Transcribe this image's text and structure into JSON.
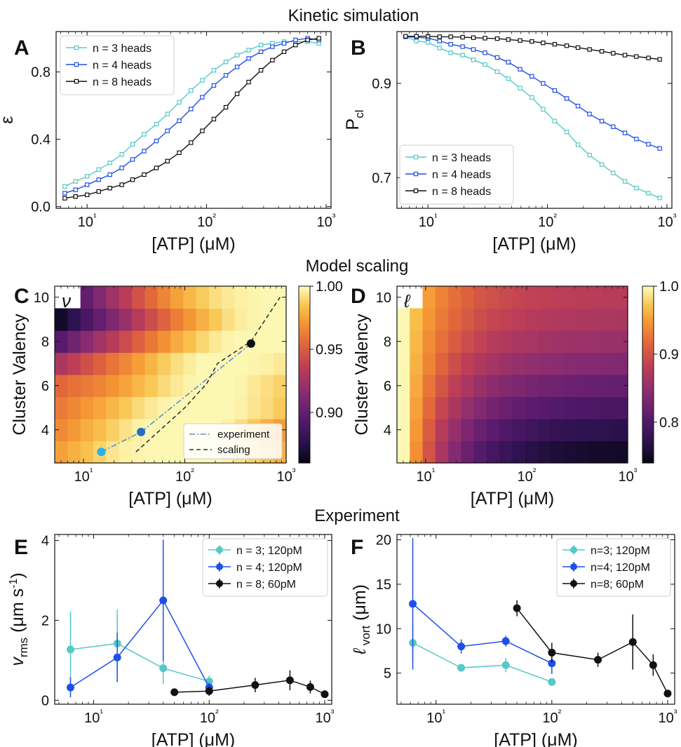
{
  "sections": {
    "kinetic": "Kinetic simulation",
    "model": "Model scaling",
    "experiment": "Experiment"
  },
  "panel_letters": {
    "A": "A",
    "B": "B",
    "C": "C",
    "D": "D",
    "E": "E",
    "F": "F"
  },
  "colors": {
    "n3": "#56c8c8",
    "n4": "#1f4fe8",
    "n8": "#111111",
    "scaling": "#333333",
    "exp_line": "#5a8fd0",
    "exp_pt1": "#2ab0e8",
    "exp_pt2": "#1f6fc0"
  },
  "chart_data": [
    {
      "id": "A",
      "type": "line",
      "title": "",
      "xlabel": "[ATP] (μM)",
      "ylabel": "ε",
      "xscale": "log",
      "xlim": [
        5.5,
        1100
      ],
      "ylim": [
        -0.01,
        1.04
      ],
      "xticks": [
        10,
        100,
        1000
      ],
      "xtick_labels": [
        "10¹",
        "10²",
        "10³"
      ],
      "yticks": [
        0.0,
        0.4,
        0.8
      ],
      "ytick_labels": [
        "0.0",
        "0.4",
        "0.8"
      ],
      "legend": "top-left",
      "marker": "open-square",
      "x": [
        6.5,
        8,
        10,
        12.5,
        15.5,
        19.5,
        24,
        30,
        38,
        47,
        59,
        74,
        92,
        115,
        145,
        180,
        225,
        285,
        355,
        445,
        555,
        700,
        870
      ],
      "series": [
        {
          "name": "n = 3 heads",
          "color": "#56c8c8",
          "values": [
            0.12,
            0.15,
            0.18,
            0.22,
            0.26,
            0.31,
            0.37,
            0.43,
            0.49,
            0.55,
            0.62,
            0.69,
            0.75,
            0.81,
            0.86,
            0.9,
            0.93,
            0.96,
            0.97,
            0.98,
            0.98,
            0.98,
            0.97
          ]
        },
        {
          "name": "n = 4 heads",
          "color": "#1f4fe8",
          "values": [
            0.08,
            0.1,
            0.13,
            0.16,
            0.19,
            0.23,
            0.28,
            0.33,
            0.39,
            0.45,
            0.51,
            0.58,
            0.65,
            0.72,
            0.78,
            0.83,
            0.88,
            0.92,
            0.95,
            0.97,
            0.99,
            1.0,
            0.99
          ]
        },
        {
          "name": "n = 8 heads",
          "color": "#111111",
          "values": [
            0.05,
            0.06,
            0.07,
            0.09,
            0.11,
            0.13,
            0.16,
            0.19,
            0.23,
            0.27,
            0.32,
            0.38,
            0.45,
            0.52,
            0.59,
            0.67,
            0.74,
            0.81,
            0.87,
            0.92,
            0.96,
            0.99,
            1.0
          ]
        }
      ]
    },
    {
      "id": "B",
      "type": "line",
      "title": "",
      "xlabel": "[ATP] (μM)",
      "ylabel": "P",
      "ylabel_sub": "cl",
      "xscale": "log",
      "xlim": [
        5.5,
        1100
      ],
      "ylim": [
        0.635,
        1.01
      ],
      "xticks": [
        10,
        100,
        1000
      ],
      "xtick_labels": [
        "10¹",
        "10²",
        "10³"
      ],
      "yticks": [
        0.7,
        0.9
      ],
      "ytick_labels": [
        "0.7",
        "0.9"
      ],
      "legend": "bottom-left",
      "marker": "open-square",
      "x": [
        6.5,
        8,
        10,
        12.5,
        15.5,
        19.5,
        24,
        30,
        38,
        47,
        59,
        74,
        92,
        115,
        145,
        180,
        225,
        285,
        355,
        445,
        555,
        700,
        870
      ],
      "series": [
        {
          "name": "n = 3 heads",
          "color": "#56c8c8",
          "values": [
            0.999,
            0.99,
            0.987,
            0.975,
            0.965,
            0.96,
            0.95,
            0.94,
            0.925,
            0.91,
            0.89,
            0.87,
            0.845,
            0.82,
            0.797,
            0.77,
            0.748,
            0.728,
            0.71,
            0.692,
            0.678,
            0.667,
            0.657
          ]
        },
        {
          "name": "n = 4 heads",
          "color": "#1f4fe8",
          "values": [
            0.999,
            0.998,
            0.996,
            0.99,
            0.983,
            0.978,
            0.972,
            0.965,
            0.955,
            0.945,
            0.93,
            0.915,
            0.9,
            0.885,
            0.868,
            0.852,
            0.835,
            0.82,
            0.808,
            0.795,
            0.782,
            0.771,
            0.762
          ]
        },
        {
          "name": "n = 8 heads",
          "color": "#111111",
          "values": [
            1.0,
            1.0,
            1.0,
            0.999,
            0.999,
            0.998,
            0.997,
            0.996,
            0.995,
            0.993,
            0.991,
            0.989,
            0.986,
            0.983,
            0.98,
            0.976,
            0.972,
            0.968,
            0.964,
            0.96,
            0.957,
            0.954,
            0.951
          ]
        }
      ]
    },
    {
      "id": "C",
      "type": "heatmap",
      "title": "ν",
      "xlabel": "[ATP] (μM)",
      "ylabel": "Cluster Valency",
      "xscale": "log",
      "xlim": [
        5.2,
        1000
      ],
      "ylim": [
        2.5,
        10.5
      ],
      "xticks": [
        10,
        100,
        1000
      ],
      "xtick_labels": [
        "10¹",
        "10²",
        "10³"
      ],
      "yticks": [
        4,
        6,
        8,
        10
      ],
      "ytick_labels": [
        "4",
        "6",
        "8",
        "10"
      ],
      "colormap": "inferno-like",
      "clim": [
        0.86,
        1.0
      ],
      "colorbar_ticks": [
        0.9,
        0.95,
        1.0
      ],
      "colorbar_labels": [
        "0.90",
        "0.95",
        "1.00"
      ],
      "rows": [
        3,
        4,
        5,
        6,
        7,
        8,
        9,
        10
      ],
      "n_cols": 18,
      "n_missing_first_cols_row10": 2,
      "values_by_row": [
        [
          0.975,
          0.98,
          0.985,
          0.99,
          0.995,
          0.998,
          0.999,
          1.0,
          1.0,
          1.0,
          1.0,
          1.0,
          1.0,
          0.998,
          0.994,
          0.99,
          0.985,
          0.98
        ],
        [
          0.968,
          0.973,
          0.979,
          0.984,
          0.989,
          0.994,
          0.998,
          1.0,
          1.0,
          1.0,
          1.0,
          1.0,
          1.0,
          0.998,
          0.993,
          0.987,
          0.98,
          0.974
        ],
        [
          0.962,
          0.967,
          0.972,
          0.977,
          0.982,
          0.987,
          0.992,
          0.996,
          0.999,
          1.0,
          1.0,
          1.0,
          1.0,
          1.0,
          0.998,
          0.995,
          0.992,
          0.988
        ],
        [
          0.955,
          0.959,
          0.962,
          0.966,
          0.971,
          0.976,
          0.982,
          0.987,
          0.992,
          0.996,
          0.999,
          1.0,
          1.0,
          1.0,
          0.999,
          0.996,
          0.993,
          0.99
        ],
        [
          0.93,
          0.937,
          0.945,
          0.952,
          0.96,
          0.967,
          0.974,
          0.981,
          0.988,
          0.993,
          0.997,
          1.0,
          1.0,
          1.0,
          1.0,
          0.999,
          0.998,
          0.996
        ],
        [
          0.895,
          0.905,
          0.915,
          0.925,
          0.934,
          0.943,
          0.952,
          0.961,
          0.97,
          0.978,
          0.985,
          0.991,
          0.996,
          0.999,
          1.0,
          1.0,
          1.0,
          1.0
        ],
        [
          0.865,
          0.877,
          0.889,
          0.9,
          0.911,
          0.922,
          0.933,
          0.943,
          0.953,
          0.963,
          0.972,
          0.98,
          0.987,
          0.993,
          0.997,
          0.999,
          1.0,
          1.0
        ],
        [
          null,
          null,
          0.9,
          0.912,
          0.924,
          0.935,
          0.946,
          0.956,
          0.966,
          0.975,
          0.982,
          0.988,
          0.993,
          0.996,
          0.998,
          0.999,
          1.0,
          1.0
        ]
      ],
      "lines": [
        {
          "name": "experiment",
          "style": "dash-dot",
          "color": "#5a8fd0",
          "x": [
            15,
            37,
            450
          ],
          "y": [
            3,
            3.9,
            7.9
          ]
        },
        {
          "name": "scaling",
          "style": "dashed",
          "color": "#333333",
          "x": [
            33,
            100,
            165,
            210,
            450,
            870
          ],
          "y": [
            3,
            5,
            6.1,
            7,
            8,
            10
          ]
        }
      ],
      "points": [
        {
          "x": 15,
          "y": 3,
          "color": "#2ab0e8"
        },
        {
          "x": 37,
          "y": 3.9,
          "color": "#1f6fc0"
        },
        {
          "x": 450,
          "y": 7.9,
          "color": "#111111"
        }
      ],
      "legend": "bottom-right"
    },
    {
      "id": "D",
      "type": "heatmap",
      "title": "ℓ",
      "xlabel": "[ATP] (μM)",
      "ylabel": "Cluster Valency",
      "xscale": "log",
      "xlim": [
        5.2,
        1000
      ],
      "ylim": [
        2.5,
        10.5
      ],
      "xticks": [
        10,
        100,
        1000
      ],
      "xtick_labels": [
        "10¹",
        "10²",
        "10³"
      ],
      "yticks": [
        4,
        6,
        8,
        10
      ],
      "ytick_labels": [
        "4",
        "6",
        "8",
        "10"
      ],
      "colormap": "inferno-like",
      "clim": [
        0.74,
        1.0
      ],
      "colorbar_ticks": [
        0.8,
        0.9,
        1.0
      ],
      "colorbar_labels": [
        "0.8",
        "0.9",
        "1.0"
      ],
      "rows": [
        3,
        4,
        5,
        6,
        7,
        8,
        9,
        10
      ],
      "n_cols": 18,
      "n_missing_first_cols_row10": 2,
      "row_floor": {
        "3": 0.745,
        "4": 0.765,
        "5": 0.79,
        "6": 0.812,
        "7": 0.835,
        "8": 0.852,
        "9": 0.866,
        "10": 0.876
      }
    },
    {
      "id": "E",
      "type": "scatter",
      "title": "",
      "xlabel": "[ATP] (μM)",
      "ylabel": "v",
      "ylabel_sub": "rms",
      "ylabel_unit": " (μm s",
      "ylabel_sup": "-1",
      "ylabel_end": ")",
      "xscale": "log",
      "xlim": [
        4.6,
        1150
      ],
      "ylim": [
        -0.1,
        4.15
      ],
      "xticks": [
        10,
        100,
        1000
      ],
      "xtick_labels": [
        "10¹",
        "10²",
        "10³"
      ],
      "yticks": [
        0,
        2,
        4
      ],
      "ytick_labels": [
        "0",
        "2",
        "4"
      ],
      "legend": "top-right",
      "series": [
        {
          "name": "n = 3; 120pM",
          "color": "#56c8c8",
          "x": [
            6.3,
            16,
            40,
            100
          ],
          "values": [
            1.27,
            1.42,
            0.8,
            0.47
          ],
          "err": [
            0.95,
            0.85,
            0.4,
            0.15
          ]
        },
        {
          "name": "n = 4; 120pM",
          "color": "#1f4fe8",
          "x": [
            6.3,
            16,
            40,
            100
          ],
          "values": [
            0.32,
            1.07,
            2.5,
            0.32
          ],
          "err": [
            0.25,
            0.62,
            1.52,
            0.12
          ]
        },
        {
          "name": "n = 8; 60pM",
          "color": "#111111",
          "x": [
            50,
            100,
            250,
            500,
            750,
            1000
          ],
          "values": [
            0.2,
            0.23,
            0.38,
            0.5,
            0.33,
            0.15
          ],
          "err": [
            0.05,
            0.12,
            0.18,
            0.25,
            0.16,
            0.07
          ]
        }
      ]
    },
    {
      "id": "F",
      "type": "scatter",
      "title": "",
      "xlabel": "[ATP] (μM)",
      "ylabel": "ℓ",
      "ylabel_sub": " vort",
      "ylabel_unit": " (μm)",
      "xscale": "log",
      "xlim": [
        4.6,
        1150
      ],
      "ylim": [
        1.5,
        20.6
      ],
      "xticks": [
        10,
        100,
        1000
      ],
      "xtick_labels": [
        "10¹",
        "10²",
        "10³"
      ],
      "yticks": [
        5,
        10,
        15,
        20
      ],
      "ytick_labels": [
        "5",
        "10",
        "15",
        "20"
      ],
      "legend": "top-right",
      "series": [
        {
          "name": "n=3; 120pM",
          "color": "#56c8c8",
          "x": [
            6.3,
            16.5,
            40,
            100
          ],
          "values": [
            8.4,
            5.6,
            5.9,
            4.0
          ],
          "err": [
            2.0,
            0.4,
            0.8,
            0.3
          ]
        },
        {
          "name": "n=4; 120pM",
          "color": "#1f4fe8",
          "x": [
            6.3,
            16.5,
            40,
            100
          ],
          "values": [
            12.8,
            8.0,
            8.6,
            6.1
          ],
          "err": [
            7.4,
            0.8,
            0.6,
            1.2
          ]
        },
        {
          "name": "n=8; 60pM",
          "color": "#111111",
          "x": [
            50,
            100,
            250,
            500,
            750,
            1000
          ],
          "values": [
            12.3,
            7.3,
            6.5,
            8.5,
            5.9,
            2.7
          ],
          "err": [
            0.9,
            1.1,
            0.8,
            3.1,
            1.2,
            0.3
          ]
        }
      ]
    }
  ]
}
